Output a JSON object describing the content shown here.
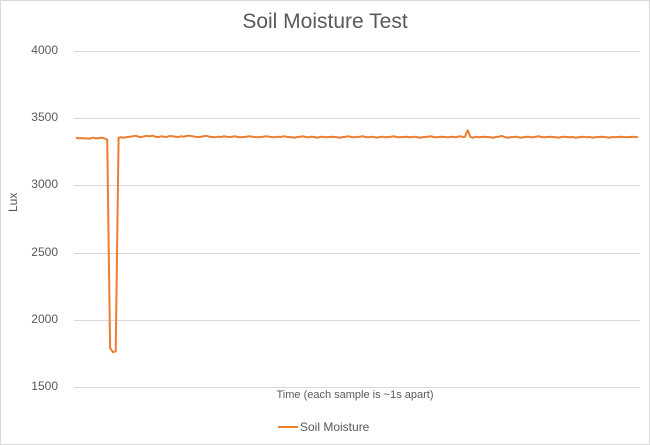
{
  "chart_data": {
    "type": "line",
    "title": "Soil Moisture Test",
    "xlabel": "Time (each sample is ~1s apart)",
    "ylabel": "Lux",
    "ylim": [
      1500,
      4000
    ],
    "yticks": [
      "4000",
      "3500",
      "3000",
      "2500",
      "2000",
      "1500"
    ],
    "grid": true,
    "legend_position": "bottom",
    "color": "#ED7D31",
    "series": [
      {
        "name": "Soil Moisture",
        "note": "approx. 200 samples; baseline ~3350-3370 with a drop to ~1760 around samples 12-14 and a small spike ~3410 near sample 139",
        "values": [
          3355,
          3350,
          3352,
          3350,
          3350,
          3348,
          3355,
          3350,
          3352,
          3355,
          3350,
          3340,
          1790,
          1760,
          1765,
          3355,
          3358,
          3355,
          3360,
          3362,
          3365,
          3370,
          3362,
          3360,
          3365,
          3368,
          3365,
          3370,
          3362,
          3360,
          3365,
          3362,
          3360,
          3368,
          3365,
          3362,
          3360,
          3365,
          3362,
          3368,
          3370,
          3365,
          3362,
          3360,
          3362,
          3365,
          3368,
          3362,
          3360,
          3358,
          3362,
          3360,
          3365,
          3362,
          3360,
          3362,
          3365,
          3360,
          3358,
          3360,
          3362,
          3365,
          3362,
          3360,
          3358,
          3360,
          3362,
          3365,
          3362,
          3360,
          3358,
          3362,
          3360,
          3365,
          3362,
          3360,
          3358,
          3355,
          3360,
          3362,
          3365,
          3360,
          3358,
          3362,
          3360,
          3355,
          3360,
          3362,
          3358,
          3360,
          3362,
          3360,
          3358,
          3355,
          3360,
          3362,
          3365,
          3360,
          3358,
          3360,
          3362,
          3365,
          3360,
          3358,
          3362,
          3360,
          3355,
          3360,
          3362,
          3358,
          3360,
          3362,
          3365,
          3360,
          3358,
          3360,
          3362,
          3360,
          3358,
          3362,
          3360,
          3355,
          3358,
          3360,
          3362,
          3365,
          3360,
          3358,
          3360,
          3362,
          3360,
          3358,
          3362,
          3360,
          3358,
          3365,
          3362,
          3360,
          3410,
          3360,
          3355,
          3362,
          3358,
          3360,
          3362,
          3360,
          3358,
          3355,
          3360,
          3362,
          3368,
          3360,
          3355,
          3358,
          3360,
          3362,
          3358,
          3355,
          3360,
          3362,
          3360,
          3358,
          3362,
          3365,
          3360,
          3358,
          3360,
          3362,
          3360,
          3358,
          3355,
          3360,
          3362,
          3360,
          3358,
          3360,
          3355,
          3358,
          3360,
          3362,
          3358,
          3360,
          3355,
          3358,
          3360,
          3362,
          3360,
          3358,
          3355,
          3360,
          3358,
          3360,
          3362,
          3360,
          3358,
          3360,
          3362,
          3360,
          3358
        ]
      }
    ]
  }
}
